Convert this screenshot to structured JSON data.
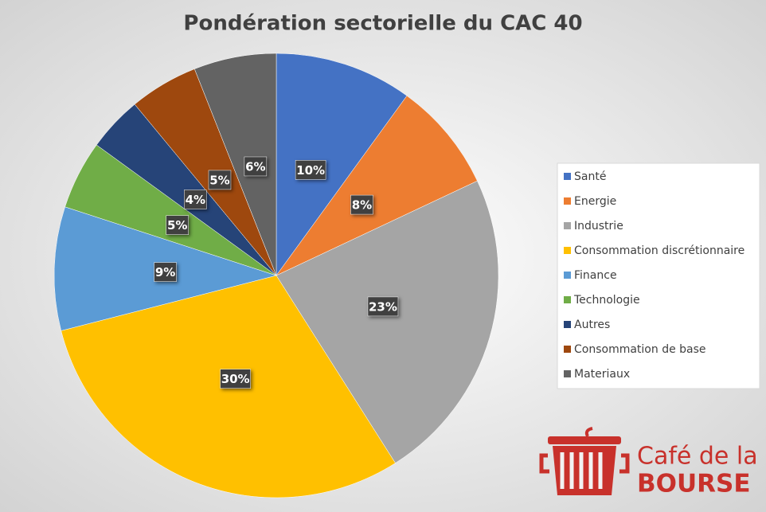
{
  "chart_data": {
    "type": "pie",
    "title": "Pondération sectorielle du CAC 40",
    "categories": [
      "Santé",
      "Energie",
      "Industrie",
      "Consommation discrétionnaire",
      "Finance",
      "Technologie",
      "Autres",
      "Consommation de base",
      "Materiaux"
    ],
    "values": [
      10,
      8,
      23,
      30,
      9,
      5,
      4,
      5,
      6
    ],
    "value_labels": [
      "10%",
      "8%",
      "23%",
      "30%",
      "9%",
      "5%",
      "4%",
      "5%",
      "6%"
    ],
    "colors": [
      "#4472c4",
      "#ed7d31",
      "#a5a5a5",
      "#ffc000",
      "#5b9bd5",
      "#70ad47",
      "#264478",
      "#9e480e",
      "#636363"
    ],
    "legend": "right"
  },
  "logo": {
    "line1": "Café de la",
    "line2": "BOURSE"
  }
}
